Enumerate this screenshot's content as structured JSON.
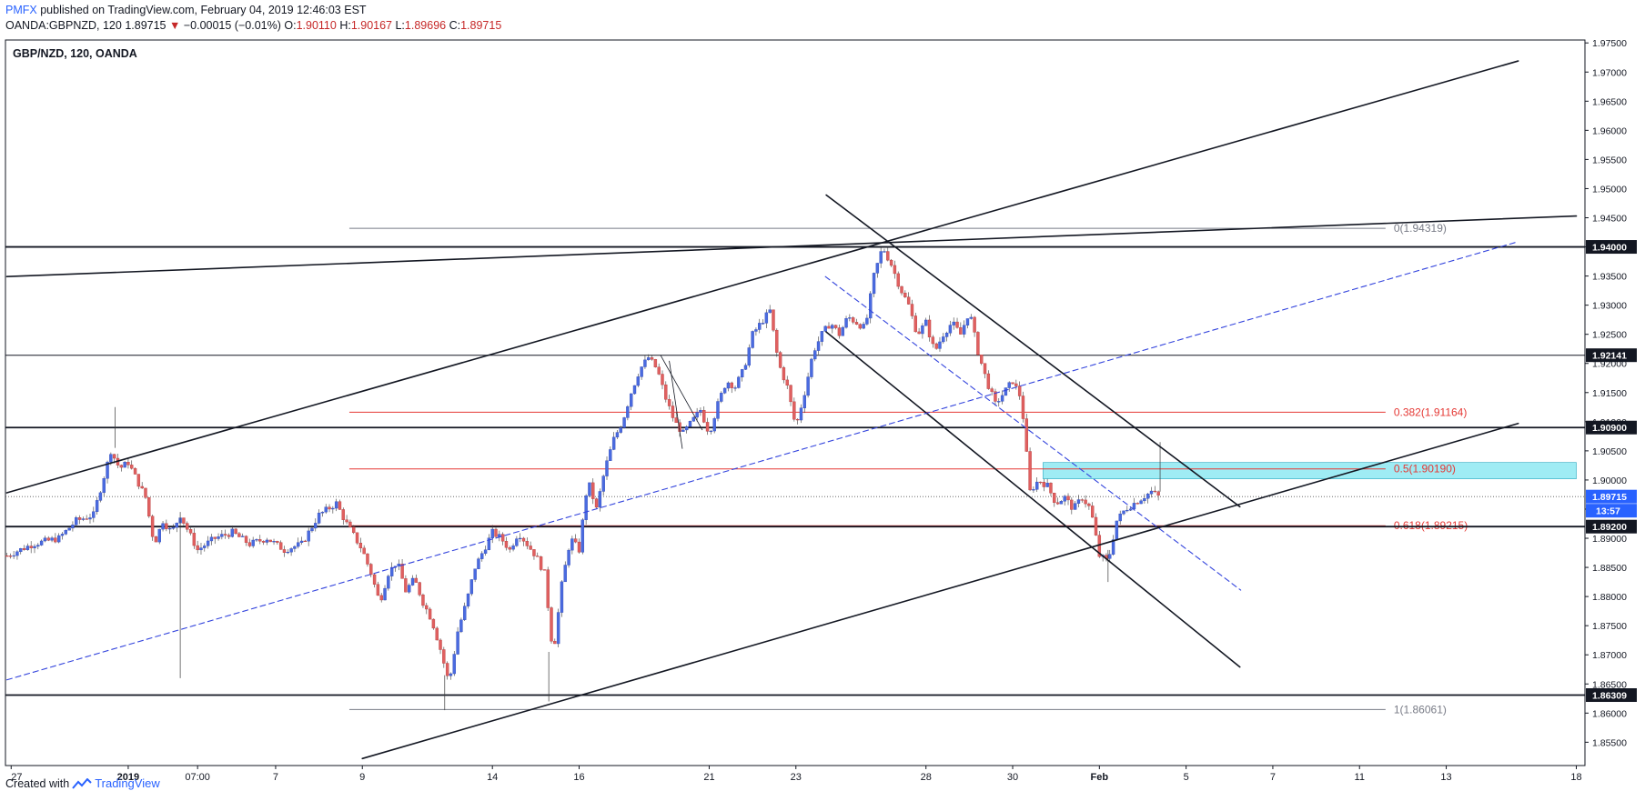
{
  "header": {
    "brand": "PMFX",
    "published": " published on TradingView.com, February 04, 2019 12:46:03 EST",
    "symbol": "OANDA:GBPNZD, 120",
    "last": "1.89715",
    "change": "−0.00015 (−0.01%)",
    "o_label": "O:",
    "o_value": "1.90110",
    "h_label": "H:",
    "h_value": "1.90167",
    "l_label": "L:",
    "l_value": "1.89696",
    "c_label": "C:",
    "c_value": "1.89715"
  },
  "footer": {
    "created_with": "Created with",
    "brand": "TradingView"
  },
  "chart_data": {
    "type": "candlestick",
    "title": "GBP/NZD, 120, OANDA",
    "ylim": [
      1.851,
      1.9755
    ],
    "y_ticks": [
      "1.97500",
      "1.97000",
      "1.96500",
      "1.96000",
      "1.95500",
      "1.95000",
      "1.94500",
      "1.94000",
      "1.93500",
      "1.93000",
      "1.92500",
      "1.92000",
      "1.91500",
      "1.91000",
      "1.90500",
      "1.90000",
      "1.89500",
      "1.89000",
      "1.88500",
      "1.88000",
      "1.87500",
      "1.87000",
      "1.86500",
      "1.86000",
      "1.85500"
    ],
    "x_ticks": [
      {
        "label": "27",
        "x": 0.5
      },
      {
        "label": "2019",
        "x": 14
      },
      {
        "label": "07:00",
        "x": 22
      },
      {
        "label": "7",
        "x": 31
      },
      {
        "label": "9",
        "x": 41
      },
      {
        "label": "14",
        "x": 56
      },
      {
        "label": "16",
        "x": 66
      },
      {
        "label": "21",
        "x": 81
      },
      {
        "label": "23",
        "x": 91
      },
      {
        "label": "28",
        "x": 106
      },
      {
        "label": "30",
        "x": 116
      },
      {
        "label": "Feb",
        "x": 126
      },
      {
        "label": "5",
        "x": 136
      },
      {
        "label": "7",
        "x": 146
      },
      {
        "label": "11",
        "x": 156
      },
      {
        "label": "13",
        "x": 166
      },
      {
        "label": "18",
        "x": 181
      }
    ],
    "price_path": [
      [
        0,
        1.887
      ],
      [
        3,
        1.889
      ],
      [
        6,
        1.89
      ],
      [
        8,
        1.893
      ],
      [
        10,
        1.894
      ],
      [
        12,
        1.905
      ],
      [
        13,
        1.902
      ],
      [
        14,
        1.903
      ],
      [
        15,
        1.9
      ],
      [
        16,
        1.897
      ],
      [
        17,
        1.889
      ],
      [
        18,
        1.893
      ],
      [
        19,
        1.891
      ],
      [
        20,
        1.894
      ],
      [
        21,
        1.891
      ],
      [
        22,
        1.888
      ],
      [
        24,
        1.89
      ],
      [
        26,
        1.891
      ],
      [
        28,
        1.889
      ],
      [
        30,
        1.89
      ],
      [
        32,
        1.888
      ],
      [
        34,
        1.889
      ],
      [
        36,
        1.894
      ],
      [
        38,
        1.896
      ],
      [
        39,
        1.893
      ],
      [
        41,
        1.888
      ],
      [
        42,
        1.884
      ],
      [
        43,
        1.879
      ],
      [
        44,
        1.884
      ],
      [
        45,
        1.886
      ],
      [
        46,
        1.881
      ],
      [
        47,
        1.883
      ],
      [
        48,
        1.879
      ],
      [
        49,
        1.876
      ],
      [
        50,
        1.871
      ],
      [
        51,
        1.865
      ],
      [
        52,
        1.874
      ],
      [
        53,
        1.879
      ],
      [
        54,
        1.885
      ],
      [
        55,
        1.888
      ],
      [
        56,
        1.891
      ],
      [
        57,
        1.89
      ],
      [
        58,
        1.888
      ],
      [
        59,
        1.891
      ],
      [
        60,
        1.889
      ],
      [
        61,
        1.887
      ],
      [
        62,
        1.884
      ],
      [
        63,
        1.87
      ],
      [
        64,
        1.882
      ],
      [
        65,
        1.89
      ],
      [
        66,
        1.888
      ],
      [
        67,
        1.9
      ],
      [
        68,
        1.895
      ],
      [
        69,
        1.902
      ],
      [
        70,
        1.907
      ],
      [
        71,
        1.91
      ],
      [
        72,
        1.915
      ],
      [
        73,
        1.919
      ],
      [
        74,
        1.921
      ],
      [
        75,
        1.919
      ],
      [
        76,
        1.914
      ],
      [
        77,
        1.91
      ],
      [
        78,
        1.908
      ],
      [
        79,
        1.91
      ],
      [
        80,
        1.912
      ],
      [
        81,
        1.908
      ],
      [
        82,
        1.913
      ],
      [
        83,
        1.917
      ],
      [
        84,
        1.916
      ],
      [
        85,
        1.919
      ],
      [
        86,
        1.925
      ],
      [
        87,
        1.927
      ],
      [
        88,
        1.929
      ],
      [
        89,
        1.92
      ],
      [
        90,
        1.916
      ],
      [
        91,
        1.909
      ],
      [
        92,
        1.915
      ],
      [
        93,
        1.922
      ],
      [
        94,
        1.925
      ],
      [
        95,
        1.927
      ],
      [
        96,
        1.925
      ],
      [
        97,
        1.928
      ],
      [
        98,
        1.927
      ],
      [
        99,
        1.926
      ],
      [
        100,
        1.935
      ],
      [
        101,
        1.94
      ],
      [
        102,
        1.937
      ],
      [
        103,
        1.933
      ],
      [
        104,
        1.93
      ],
      [
        105,
        1.925
      ],
      [
        106,
        1.927
      ],
      [
        107,
        1.922
      ],
      [
        108,
        1.925
      ],
      [
        109,
        1.927
      ],
      [
        110,
        1.925
      ],
      [
        111,
        1.929
      ],
      [
        112,
        1.922
      ],
      [
        113,
        1.917
      ],
      [
        114,
        1.913
      ],
      [
        115,
        1.915
      ],
      [
        116,
        1.917
      ],
      [
        117,
        1.914
      ],
      [
        118,
        1.898
      ],
      [
        119,
        1.9
      ],
      [
        120,
        1.899
      ],
      [
        121,
        1.896
      ],
      [
        122,
        1.897
      ],
      [
        123,
        1.895
      ],
      [
        124,
        1.897
      ],
      [
        125,
        1.895
      ],
      [
        126,
        1.887
      ],
      [
        127,
        1.886
      ],
      [
        128,
        1.893
      ],
      [
        129,
        1.895
      ],
      [
        130,
        1.896
      ],
      [
        131,
        1.897
      ],
      [
        132,
        1.898
      ],
      [
        133,
        1.897
      ]
    ],
    "drawings": [
      {
        "kind": "line",
        "x1": 0,
        "y1": 1.9349,
        "x2": 181,
        "y2": 1.9453,
        "color": "#131722",
        "width": 1.6
      },
      {
        "kind": "line",
        "x1": 0,
        "y1": 1.8978,
        "x2": 174.3,
        "y2": 1.9719,
        "color": "#131722",
        "width": 1.6
      },
      {
        "kind": "line",
        "x1": 41,
        "y1": 1.8522,
        "x2": 174.3,
        "y2": 1.9097,
        "color": "#131722",
        "width": 1.6
      },
      {
        "kind": "line",
        "x1": 94.5,
        "y1": 1.9489,
        "x2": 142.2,
        "y2": 1.8954,
        "color": "#131722",
        "width": 1.6
      },
      {
        "kind": "line",
        "x1": 94.5,
        "y1": 1.9254,
        "x2": 142.2,
        "y2": 1.8679,
        "color": "#131722",
        "width": 1.6
      },
      {
        "kind": "line",
        "x1": 0,
        "y1": 1.8657,
        "x2": 174.3,
        "y2": 1.9409,
        "color": "#3344dd",
        "width": 1.1,
        "dash": "6,4"
      },
      {
        "kind": "line",
        "x1": 94.4,
        "y1": 1.9349,
        "x2": 142.3,
        "y2": 1.8811,
        "color": "#3344dd",
        "width": 1.1,
        "dash": "6,4"
      },
      {
        "kind": "line",
        "x1": 76.4,
        "y1": 1.9204,
        "x2": 77.9,
        "y2": 1.9054,
        "color": "#131722",
        "width": 0.8
      },
      {
        "kind": "line",
        "x1": 75.4,
        "y1": 1.9214,
        "x2": 80.2,
        "y2": 1.9086,
        "color": "#131722",
        "width": 0.8
      }
    ],
    "levels": [
      {
        "price": 1.94,
        "label": "1.94000",
        "style": "badge",
        "color": "#131722",
        "width": 1.8
      },
      {
        "price": 1.92141,
        "label": "1.92141",
        "style": "badge",
        "color": "#131722",
        "width": 1.0
      },
      {
        "price": 1.909,
        "label": "1.90900",
        "style": "badge",
        "color": "#131722",
        "width": 1.8
      },
      {
        "price": 1.892,
        "label": "1.89200",
        "style": "badge",
        "color": "#131722",
        "width": 1.8
      },
      {
        "price": 1.86309,
        "label": "1.86309",
        "style": "badge",
        "color": "#131722",
        "width": 1.8
      }
    ],
    "last_price": {
      "price": 1.89715,
      "label": "1.89715",
      "countdown": "13:57",
      "color": "#2962ff"
    },
    "fib": {
      "x1": 39.5,
      "x2": 159,
      "levels": [
        {
          "ratio": "0",
          "price": 1.94319,
          "label": "0(1.94319)",
          "color": "#787b86"
        },
        {
          "ratio": "0.382",
          "price": 1.91164,
          "label": "0.382(1.91164)",
          "color": "#e53935"
        },
        {
          "ratio": "0.5",
          "price": 1.9019,
          "label": "0.5(1.90190)",
          "color": "#e53935"
        },
        {
          "ratio": "0.618",
          "price": 1.89215,
          "label": "0.618(1.89215)",
          "color": "#e53935"
        },
        {
          "ratio": "1",
          "price": 1.86061,
          "label": "1(1.86061)",
          "color": "#787b86"
        }
      ]
    },
    "zone": {
      "x1": 119.5,
      "x2": 181,
      "y_top": 1.903,
      "y_bottom": 1.9002,
      "color": "#7fe6f0"
    }
  }
}
